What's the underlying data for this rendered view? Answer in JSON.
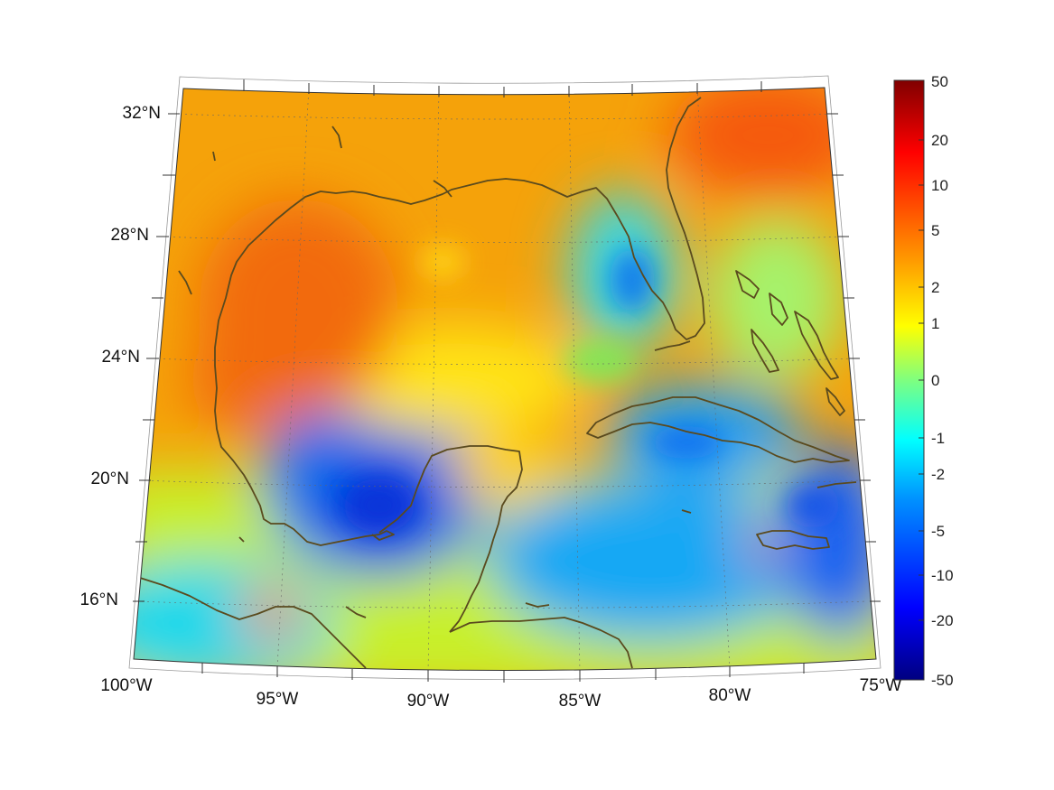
{
  "map": {
    "projection": "conic",
    "lon_ticks": [
      "100°W",
      "95°W",
      "90°W",
      "85°W",
      "80°W",
      "75°W"
    ],
    "lat_ticks": [
      "16°N",
      "20°N",
      "24°N",
      "28°N",
      "32°N"
    ],
    "grid": true
  },
  "colorbar": {
    "colormap": "jet",
    "scale": "symmetric-log",
    "range": [
      -50,
      50
    ],
    "tick_labels": [
      "50",
      "20",
      "10",
      "5",
      "2",
      "1",
      "0",
      "-1",
      "-2",
      "-5",
      "-10",
      "-20",
      "-50"
    ]
  },
  "colors": {
    "coastline": "#5a4a1e",
    "gridline": "#666666",
    "background": "#ffffff"
  }
}
